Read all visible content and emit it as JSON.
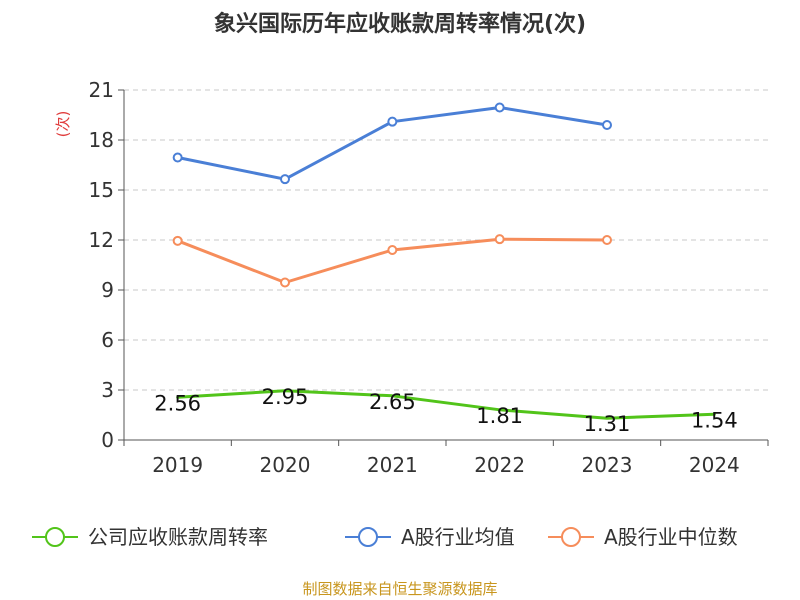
{
  "chart_data": {
    "type": "line",
    "title": "象兴国际历年应收账款周转率情况(次)",
    "ylabel": "(次)",
    "xlabel": "",
    "categories": [
      "2019",
      "2020",
      "2021",
      "2022",
      "2023",
      "2024"
    ],
    "yticks": [
      0,
      3,
      6,
      9,
      12,
      15,
      18,
      21
    ],
    "ylim": [
      0,
      21
    ],
    "grid": true,
    "legend_position": "bottom",
    "series": [
      {
        "name": "公司应收账款周转率",
        "color": "#52c41a",
        "values": [
          2.56,
          2.95,
          2.65,
          1.81,
          1.31,
          1.54
        ],
        "value_labels": [
          "2.56",
          "2.95",
          "2.65",
          "1.81",
          "1.31",
          "1.54"
        ],
        "show_markers": false,
        "show_labels": true
      },
      {
        "name": "A股行业均值",
        "color": "#4a7fd6",
        "values": [
          16.95,
          15.65,
          19.1,
          19.95,
          18.9,
          null
        ],
        "show_markers": true,
        "show_labels": false
      },
      {
        "name": "A股行业中位数",
        "color": "#f68d5b",
        "values": [
          11.95,
          9.45,
          11.4,
          12.05,
          12.0,
          null
        ],
        "show_markers": true,
        "show_labels": false
      }
    ],
    "source": "制图数据来自恒生聚源数据库"
  }
}
